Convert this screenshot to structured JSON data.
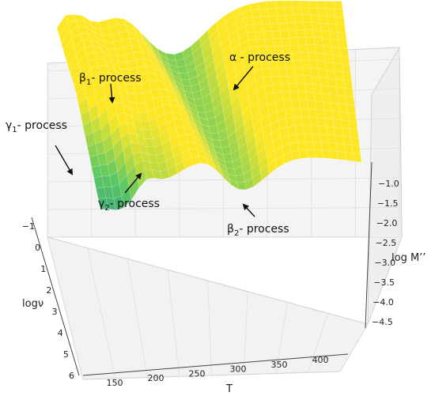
{
  "chart_data": {
    "type": "surface3d",
    "xlabel": "T",
    "ylabel": "logν",
    "zlabel": "log M’’",
    "x_ticks": [
      "150",
      "200",
      "250",
      "300",
      "350",
      "400"
    ],
    "y_ticks": [
      "−1",
      "0",
      "1",
      "2",
      "3",
      "4",
      "5",
      "6"
    ],
    "z_ticks": [
      "−1.0",
      "−1.5",
      "−2.0",
      "−2.5",
      "−3.0",
      "−3.5",
      "−4.0",
      "−4.5"
    ],
    "x_range": [
      130,
      420
    ],
    "y_range": [
      -1,
      6
    ],
    "z_range": [
      -4.7,
      -0.7
    ],
    "colormap": "viridis",
    "grid": true,
    "annotations": [
      {
        "pre": "α",
        "sub": "",
        "post": " - process"
      },
      {
        "pre": "β",
        "sub": "1",
        "post": "- process"
      },
      {
        "pre": "γ",
        "sub": "1",
        "post": "- process"
      },
      {
        "pre": "γ",
        "sub": "2",
        "post": "- process"
      },
      {
        "pre": "β",
        "sub": "2",
        "post": "- process"
      }
    ]
  }
}
